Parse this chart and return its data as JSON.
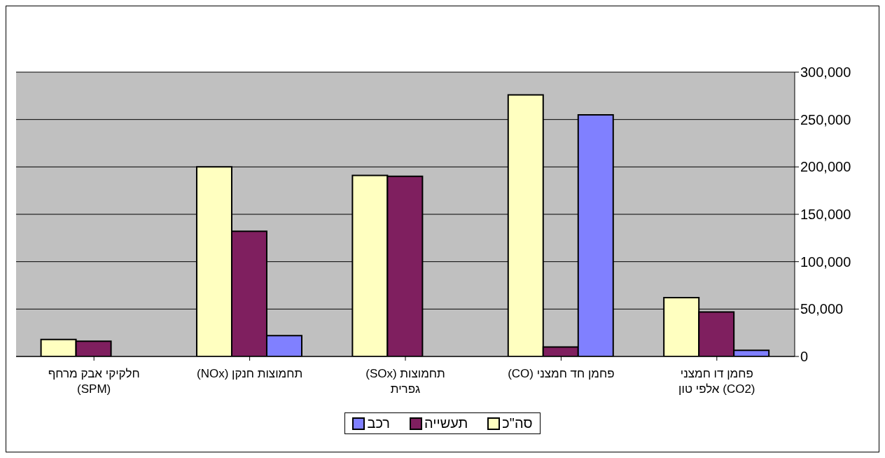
{
  "chart_data": {
    "type": "bar",
    "categories": [
      "חלקיקי אבק מרחף (SPM)",
      "תחמוצות חנקן (NOx)",
      "תחמוצות (SOx) גפרית",
      "פחמן חד חמצני (CO)",
      "פחמן דו חמצני (CO2) אלפי טון"
    ],
    "series": [
      {
        "name": "סה\"כ",
        "color": "#ffffc0",
        "values": [
          18000,
          200000,
          191000,
          276000,
          62000
        ]
      },
      {
        "name": "תעשייה",
        "color": "#7f1f5f",
        "values": [
          16000,
          132000,
          190000,
          10000,
          47000
        ]
      },
      {
        "name": "רכב",
        "color": "#8080ff",
        "values": [
          null,
          22000,
          null,
          255000,
          6500
        ]
      }
    ],
    "ylim": [
      0,
      300000
    ],
    "yticks": [
      0,
      {
        "value": 50000,
        "label": "50,000"
      },
      {
        "value": 100000,
        "label": "100,000"
      },
      {
        "value": 150000,
        "label": "150,000"
      },
      {
        "value": 200000,
        "label": "200,000"
      },
      {
        "value": 250000,
        "label": "250,000"
      },
      {
        "value": 300000,
        "label": "300,000"
      }
    ],
    "grid": "y",
    "legend": "bottom"
  }
}
